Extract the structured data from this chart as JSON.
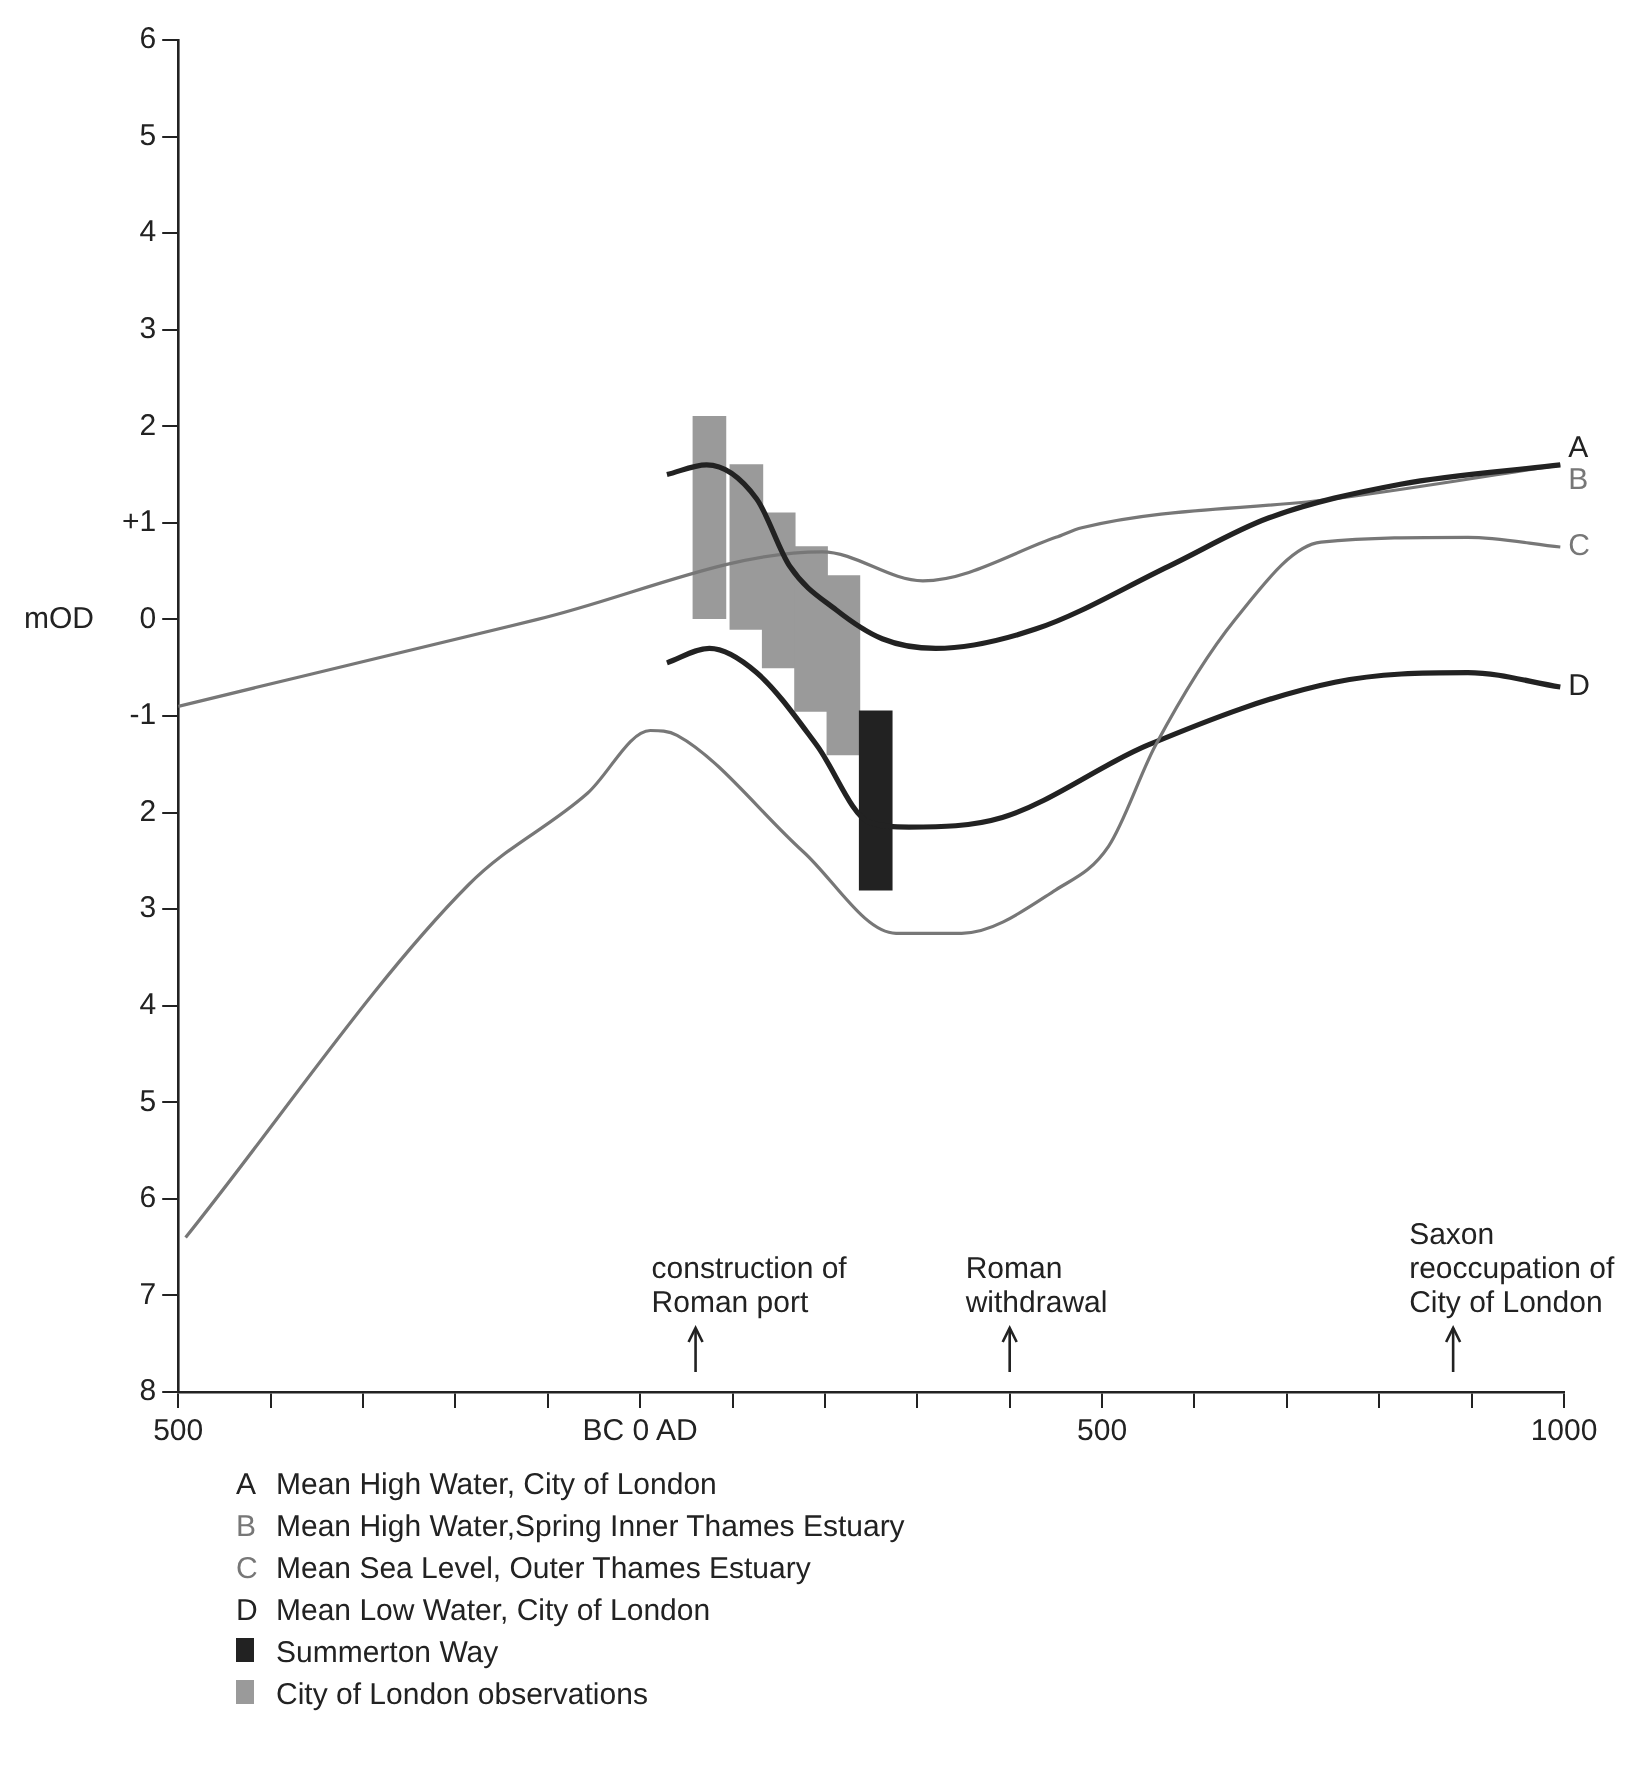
{
  "chart_data": {
    "type": "line",
    "ylabel": "mOD",
    "xlim": [
      -500,
      1000
    ],
    "xticks": [
      {
        "value": -500,
        "label": "500"
      },
      {
        "value": -400,
        "label": null
      },
      {
        "value": -300,
        "label": null
      },
      {
        "value": -200,
        "label": null
      },
      {
        "value": -100,
        "label": null
      },
      {
        "value": 0,
        "label": "BC 0 AD"
      },
      {
        "value": 100,
        "label": null
      },
      {
        "value": 200,
        "label": null
      },
      {
        "value": 300,
        "label": null
      },
      {
        "value": 400,
        "label": null
      },
      {
        "value": 500,
        "label": "500"
      },
      {
        "value": 600,
        "label": null
      },
      {
        "value": 700,
        "label": null
      },
      {
        "value": 800,
        "label": null
      },
      {
        "value": 900,
        "label": null
      },
      {
        "value": 1000,
        "label": "1000"
      }
    ],
    "ylim": [
      -8,
      6
    ],
    "yticks": [
      6,
      5,
      4,
      3,
      2,
      {
        "value": 1,
        "label": "+1"
      },
      0,
      -1,
      {
        "value": -2,
        "label": "2"
      },
      {
        "value": -3,
        "label": "3"
      },
      {
        "value": -4,
        "label": "4"
      },
      {
        "value": -5,
        "label": "5"
      },
      {
        "value": -6,
        "label": "6"
      },
      {
        "value": -7,
        "label": "7"
      },
      {
        "value": -8,
        "label": "8"
      }
    ],
    "legend": "bottom",
    "series": [
      {
        "name": "A",
        "color": "#222222",
        "x": [
          29,
          72,
          126,
          162,
          212,
          262,
          320,
          428,
          572,
          680,
          823,
          996
        ],
        "values": [
          1.5,
          1.6,
          1.25,
          0.55,
          0.1,
          -0.2,
          -0.3,
          -0.1,
          0.55,
          1.05,
          1.4,
          1.6
        ]
      },
      {
        "name": "B",
        "color": "#777777",
        "x": [
          -500,
          -111,
          197,
          306,
          450,
          478,
          752,
          996
        ],
        "values": [
          -0.9,
          0.0,
          0.7,
          0.4,
          0.85,
          0.95,
          1.25,
          1.6
        ]
      },
      {
        "name": "C",
        "color": "#777777",
        "x": [
          -492,
          -186,
          -57,
          11,
          40,
          176,
          277,
          348,
          450,
          507,
          558,
          644,
          737,
          896,
          996
        ],
        "values": [
          -6.4,
          -2.75,
          -1.8,
          -1.15,
          -1.2,
          -2.4,
          -3.25,
          -3.25,
          -2.8,
          -2.35,
          -1.3,
          0.0,
          0.8,
          0.85,
          0.75
        ]
      },
      {
        "name": "D",
        "color": "#222222",
        "x": [
          29,
          75,
          126,
          191,
          248,
          291,
          392,
          550,
          752,
          896,
          996
        ],
        "values": [
          -0.45,
          -0.3,
          -0.55,
          -1.3,
          -2.1,
          -2.15,
          -2.05,
          -1.3,
          -0.65,
          -0.55,
          -0.7
        ]
      },
      {
        "name": "Summerton Way",
        "type": "bar",
        "color": "#222222",
        "x": [
          255
        ],
        "base": [
          -2.8
        ],
        "values": [
          1.85
        ]
      },
      {
        "name": "City of London observations",
        "type": "bar",
        "color": "#9a9a9a",
        "x": [
          75,
          115,
          150,
          185,
          220
        ],
        "base": [
          0,
          -0.1,
          -0.5,
          -0.95,
          -1.4
        ],
        "values": [
          2.1,
          1.7,
          1.6,
          1.7,
          1.85
        ]
      }
    ],
    "annotations": [
      "Mean High Water, City of London",
      "Mean High Water,Spring Inner Thames Estuary",
      "Mean Sea Level, Outer Thames Estuary",
      "Mean Low Water, City of London"
    ],
    "ref_lines": [
      {
        "axis": "x",
        "value": 60,
        "label": "construction of Roman port"
      },
      {
        "axis": "x",
        "value": 400,
        "label": "Roman withdrawal"
      },
      {
        "axis": "x",
        "value": 880,
        "label": "Saxon reoccupation of City of London"
      }
    ]
  }
}
